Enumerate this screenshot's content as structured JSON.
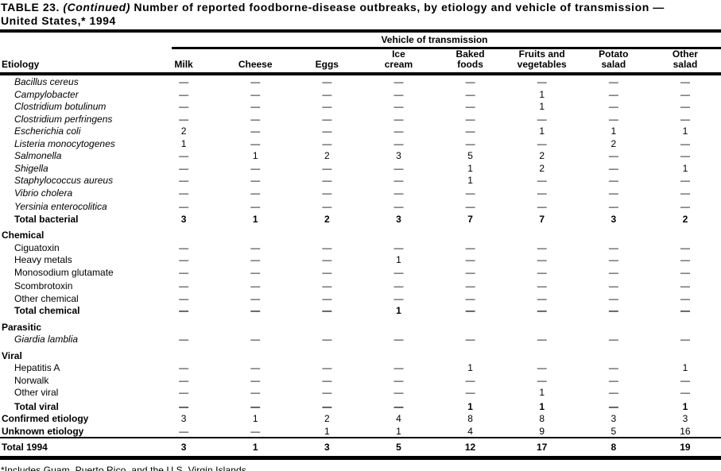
{
  "title": {
    "prefix": "TABLE 23. ",
    "continued": "(Continued)",
    "suffix": " Number of reported foodborne-disease outbreaks, by etiology and vehicle of transmission —",
    "line2": "United States,* 1994"
  },
  "table": {
    "spanner": "Vehicle of transmission",
    "etiology_label": "Etiology",
    "columns": [
      "Milk",
      "Cheese",
      "Eggs",
      "Ice\ncream",
      "Baked\nfoods",
      "Fruits and\nvegetables",
      "Potato\nsalad",
      "Other\nsalad"
    ],
    "rows": [
      {
        "label": "Bacillus cereus",
        "type": "species",
        "values": [
          "—",
          "—",
          "—",
          "—",
          "—",
          "—",
          "—",
          "—"
        ]
      },
      {
        "label": "Campylobacter",
        "type": "species",
        "values": [
          "—",
          "—",
          "—",
          "—",
          "—",
          "1",
          "—",
          "—"
        ]
      },
      {
        "label": "Clostridium botulinum",
        "type": "species",
        "values": [
          "—",
          "—",
          "—",
          "—",
          "—",
          "1",
          "—",
          "—"
        ]
      },
      {
        "label": "Clostridium perfringens",
        "type": "species",
        "values": [
          "—",
          "—",
          "—",
          "—",
          "—",
          "—",
          "—",
          "—"
        ]
      },
      {
        "label": "Escherichia coli",
        "type": "species",
        "values": [
          "2",
          "—",
          "—",
          "—",
          "—",
          "1",
          "1",
          "1"
        ]
      },
      {
        "label": "Listeria monocytogenes",
        "type": "species",
        "values": [
          "1",
          "—",
          "—",
          "—",
          "—",
          "—",
          "2",
          "—"
        ]
      },
      {
        "label": "Salmonella",
        "type": "species",
        "values": [
          "—",
          "1",
          "2",
          "3",
          "5",
          "2",
          "—",
          "—"
        ]
      },
      {
        "label": "Shigella",
        "type": "species",
        "values": [
          "—",
          "—",
          "—",
          "—",
          "1",
          "2",
          "—",
          "1"
        ]
      },
      {
        "label": "Staphylococcus aureus",
        "type": "species",
        "values": [
          "—",
          "—",
          "—",
          "—",
          "1",
          "—",
          "—",
          "—"
        ]
      },
      {
        "label": "Vibrio cholera",
        "type": "species",
        "values": [
          "—",
          "—",
          "—",
          "—",
          "—",
          "—",
          "—",
          "—"
        ]
      },
      {
        "label": "Yersinia enterocolitica",
        "type": "species",
        "loose": true,
        "values": [
          "—",
          "—",
          "—",
          "—",
          "—",
          "—",
          "—",
          "—"
        ]
      },
      {
        "label": "Total bacterial",
        "type": "total",
        "values": [
          "3",
          "1",
          "2",
          "3",
          "7",
          "7",
          "3",
          "2"
        ]
      },
      {
        "label": "Chemical",
        "type": "section",
        "values": null
      },
      {
        "label": "Ciguatoxin",
        "type": "item",
        "values": [
          "—",
          "—",
          "—",
          "—",
          "—",
          "—",
          "—",
          "—"
        ]
      },
      {
        "label": "Heavy metals",
        "type": "item",
        "values": [
          "—",
          "—",
          "—",
          "1",
          "—",
          "—",
          "—",
          "—"
        ]
      },
      {
        "label": "Monosodium glutamate",
        "type": "item",
        "values": [
          "—",
          "—",
          "—",
          "—",
          "—",
          "—",
          "—",
          "—"
        ]
      },
      {
        "label": "Scombrotoxin",
        "type": "item",
        "loose": true,
        "values": [
          "—",
          "—",
          "—",
          "—",
          "—",
          "—",
          "—",
          "—"
        ]
      },
      {
        "label": "Other chemical",
        "type": "item",
        "values": [
          "—",
          "—",
          "—",
          "—",
          "—",
          "—",
          "—",
          "—"
        ]
      },
      {
        "label": "Total chemical",
        "type": "total",
        "values": [
          "—",
          "—",
          "—",
          "1",
          "—",
          "—",
          "—",
          "—"
        ]
      },
      {
        "label": "Parasitic",
        "type": "section",
        "values": null
      },
      {
        "label": "Giardia lamblia",
        "type": "species",
        "values": [
          "—",
          "—",
          "—",
          "—",
          "—",
          "—",
          "—",
          "—"
        ]
      },
      {
        "label": "Viral",
        "type": "section",
        "values": null
      },
      {
        "label": "Hepatitis A",
        "type": "item",
        "values": [
          "—",
          "—",
          "—",
          "—",
          "1",
          "—",
          "—",
          "1"
        ]
      },
      {
        "label": "Norwalk",
        "type": "item",
        "values": [
          "—",
          "—",
          "—",
          "—",
          "—",
          "—",
          "—",
          "—"
        ]
      },
      {
        "label": "Other viral",
        "type": "item",
        "values": [
          "—",
          "—",
          "—",
          "—",
          "—",
          "1",
          "—",
          "—"
        ]
      },
      {
        "label": "Total viral",
        "type": "total",
        "loose": true,
        "values": [
          "—",
          "—",
          "—",
          "—",
          "1",
          "1",
          "—",
          "1"
        ]
      },
      {
        "label": "Confirmed etiology",
        "type": "flush",
        "values": [
          "3",
          "1",
          "2",
          "4",
          "8",
          "8",
          "3",
          "3"
        ]
      },
      {
        "label": "Unknown etiology",
        "type": "flush",
        "values": [
          "—",
          "—",
          "1",
          "1",
          "4",
          "9",
          "5",
          "16"
        ]
      },
      {
        "label": "Total 1994",
        "type": "grand",
        "values": [
          "3",
          "1",
          "3",
          "5",
          "12",
          "17",
          "8",
          "19"
        ]
      }
    ]
  },
  "footnote": "*Includes Guam, Puerto Rico, and the U.S. Virgin Islands."
}
